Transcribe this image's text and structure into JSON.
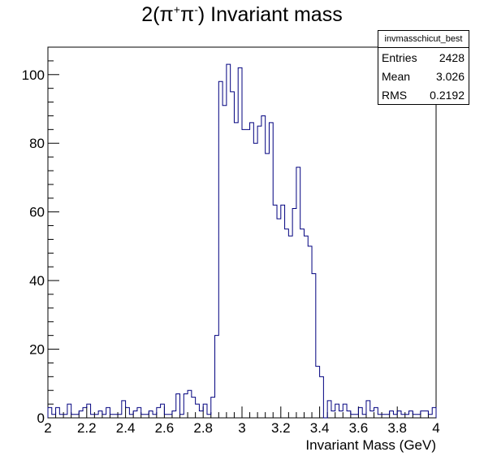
{
  "title": {
    "prefix": "2(π",
    "sup1": "+",
    "mid": "π",
    "sup2": "-",
    "suffix": ") Invariant mass"
  },
  "stats": {
    "name": "invmasschicut_best",
    "rows": [
      {
        "label": "Entries",
        "value": "2428"
      },
      {
        "label": "Mean",
        "value": "3.026"
      },
      {
        "label": "RMS",
        "value": "0.2192"
      }
    ]
  },
  "colors": {
    "histogram": "#00007f",
    "axis": "#000000"
  },
  "chart_data": {
    "type": "histogram",
    "title": "2(π+π-) Invariant mass",
    "xlabel": "Invariant Mass (GeV)",
    "ylabel": "",
    "xlim": [
      2,
      4
    ],
    "ylim": [
      0,
      108
    ],
    "x_ticks": [
      "2",
      "2.2",
      "2.4",
      "2.6",
      "2.8",
      "3",
      "3.2",
      "3.4",
      "3.6",
      "3.8",
      "4"
    ],
    "y_ticks": [
      "0",
      "20",
      "40",
      "60",
      "80",
      "100"
    ],
    "bin_width": 0.02,
    "bin_edges_start": 2.0,
    "counts": [
      3,
      1,
      3,
      1,
      1,
      4,
      1,
      1,
      2,
      3,
      4,
      1,
      1,
      2,
      1,
      3,
      1,
      1,
      1,
      5,
      3,
      1,
      2,
      3,
      1,
      1,
      2,
      1,
      3,
      4,
      1,
      1,
      2,
      7,
      1,
      7,
      8,
      6,
      4,
      2,
      4,
      1,
      6,
      24,
      98,
      91,
      103,
      95,
      86,
      102,
      84,
      84,
      86,
      80,
      85,
      88,
      77,
      86,
      62,
      58,
      62,
      55,
      53,
      61,
      73,
      55,
      53,
      50,
      42,
      15,
      12,
      0,
      5,
      2,
      4,
      2,
      4,
      2,
      1,
      1,
      3,
      1,
      5,
      2,
      3,
      1,
      1,
      1,
      2,
      1,
      2,
      1,
      1,
      2,
      1,
      1,
      2,
      2,
      1,
      3
    ]
  }
}
